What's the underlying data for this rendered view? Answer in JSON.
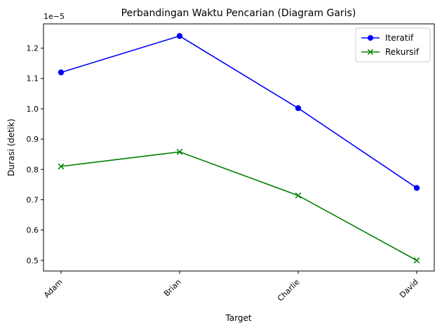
{
  "chart_data": {
    "type": "line",
    "title": "Perbandingan Waktu Pencarian (Diagram Garis)",
    "xlabel": "Target",
    "ylabel": "Durasi (detik)",
    "y_scale_label": "1e−5",
    "categories": [
      "Adam",
      "Brian",
      "Charlie",
      "David"
    ],
    "ylim": [
      0.465,
      1.28
    ],
    "yticks": [
      0.5,
      0.6,
      0.7,
      0.8,
      0.9,
      1.0,
      1.1,
      1.2
    ],
    "ytick_labels": [
      "0.5",
      "0.6",
      "0.7",
      "0.8",
      "0.9",
      "1.0",
      "1.1",
      "1.2"
    ],
    "grid": false,
    "legend_position": "top-right",
    "series": [
      {
        "name": "Iteratif",
        "values": [
          1.12,
          1.24,
          1.002,
          0.739
        ],
        "color": "#0000ff",
        "marker": "circle"
      },
      {
        "name": "Rekursif",
        "values": [
          0.81,
          0.858,
          0.714,
          0.5
        ],
        "color": "#008000",
        "marker": "x"
      }
    ]
  }
}
